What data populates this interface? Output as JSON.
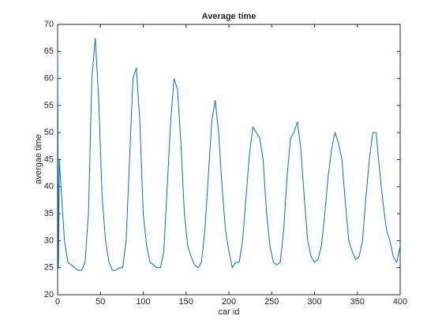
{
  "chart_data": {
    "type": "line",
    "title": "Average time",
    "x_label": "car id",
    "y_label": "avergae time",
    "x": [
      0,
      1,
      2,
      4,
      8,
      12,
      16,
      20,
      24,
      28,
      32,
      36,
      40,
      44,
      48,
      52,
      56,
      60,
      64,
      68,
      72,
      76,
      80,
      84,
      88,
      92,
      96,
      100,
      104,
      108,
      112,
      116,
      120,
      124,
      128,
      132,
      136,
      140,
      144,
      148,
      152,
      156,
      160,
      164,
      168,
      172,
      176,
      180,
      184,
      188,
      192,
      196,
      200,
      204,
      208,
      212,
      216,
      220,
      224,
      228,
      232,
      236,
      240,
      244,
      248,
      252,
      256,
      260,
      264,
      268,
      272,
      276,
      280,
      284,
      288,
      292,
      296,
      300,
      304,
      308,
      312,
      316,
      320,
      324,
      328,
      332,
      336,
      340,
      344,
      348,
      352,
      356,
      360,
      364,
      368,
      372,
      376,
      380,
      384,
      388,
      392,
      396,
      400
    ],
    "series": [
      {
        "name": "average time",
        "color": "#0072bd",
        "values": [
          65,
          25,
          45,
          40,
          30,
          26,
          25.5,
          25,
          24.5,
          24.5,
          26,
          35,
          60,
          67.5,
          56,
          38,
          30,
          26,
          24.5,
          24.5,
          25,
          25,
          30,
          45,
          60,
          62,
          52,
          35,
          29,
          26,
          25.5,
          25,
          25,
          28,
          40,
          52,
          60,
          58,
          48,
          35,
          29,
          27,
          25.5,
          25,
          26,
          32,
          42,
          52,
          56,
          50,
          40,
          32,
          28,
          25,
          26,
          26,
          30,
          38,
          46,
          51,
          50,
          49,
          45,
          35,
          29,
          26,
          25.5,
          26,
          32,
          42,
          49,
          50,
          52,
          47,
          38,
          30,
          27,
          26,
          26.5,
          29,
          35,
          42,
          47,
          50,
          48,
          45,
          37,
          30,
          28,
          26.5,
          27,
          30,
          38,
          45,
          50,
          50,
          43,
          37,
          32,
          30,
          27,
          26,
          29
        ]
      }
    ],
    "xlim": [
      0,
      400
    ],
    "xticks": [
      0,
      50,
      100,
      150,
      200,
      250,
      300,
      350,
      400
    ],
    "ylim": [
      20,
      70
    ],
    "yticks": [
      20,
      25,
      30,
      35,
      40,
      45,
      50,
      55,
      60,
      65,
      70
    ]
  }
}
